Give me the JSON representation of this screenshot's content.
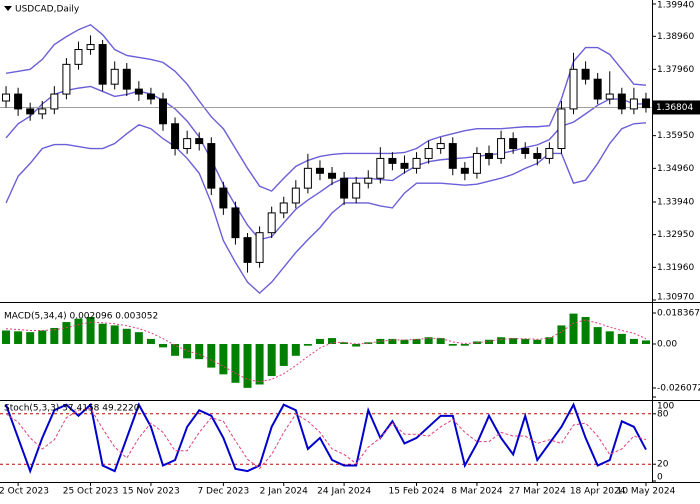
{
  "chart_data": [
    {
      "type": "candlestick",
      "title": "USDCAD,Daily",
      "categories": [
        null,
        "2 Oct 2023",
        null,
        null,
        null,
        null,
        null,
        "25 Oct 2023",
        null,
        null,
        null,
        null,
        "15 Nov 2023",
        null,
        null,
        null,
        null,
        null,
        "7 Dec 2023",
        null,
        null,
        null,
        null,
        "2 Jan 2024",
        null,
        null,
        null,
        null,
        "24 Jan 2024",
        null,
        null,
        null,
        null,
        null,
        "15 Feb 2024",
        null,
        null,
        null,
        null,
        "8 Mar 2024",
        null,
        null,
        null,
        null,
        "27 Mar 2024",
        null,
        null,
        null,
        null,
        "18 Apr 2024",
        null,
        null,
        null,
        "10 May 2024"
      ],
      "open": [
        1.37,
        1.3721,
        1.3676,
        1.3661,
        1.3676,
        1.3721,
        1.3811,
        1.3856,
        1.3871,
        1.3751,
        1.3796,
        1.3736,
        1.3721,
        1.3706,
        1.3631,
        1.3556,
        1.3586,
        1.3571,
        1.3436,
        1.3376,
        1.3286,
        1.3211,
        1.3301,
        1.3361,
        1.3391,
        1.3436,
        1.3496,
        1.3481,
        1.3466,
        1.3406,
        1.3451,
        1.3466,
        1.3526,
        1.3511,
        1.3496,
        1.3526,
        1.3556,
        1.3571,
        1.3496,
        1.3481,
        1.3541,
        1.3526,
        1.3586,
        1.3556,
        1.3541,
        1.3526,
        1.3556,
        1.3676,
        1.3796,
        1.3766,
        1.3706,
        1.3721,
        1.3676,
        1.3706
      ],
      "high": [
        1.3745,
        1.374,
        1.3695,
        1.37,
        1.3745,
        1.383,
        1.388,
        1.3899,
        1.3885,
        1.382,
        1.3815,
        1.376,
        1.374,
        1.3725,
        1.365,
        1.361,
        1.3605,
        1.359,
        1.3455,
        1.3395,
        1.33,
        1.332,
        1.338,
        1.341,
        1.346,
        1.354,
        1.352,
        1.35,
        1.3485,
        1.347,
        1.349,
        1.356,
        1.3545,
        1.3535,
        1.3545,
        1.358,
        1.359,
        1.359,
        1.3515,
        1.356,
        1.3565,
        1.361,
        1.3605,
        1.3575,
        1.356,
        1.3575,
        1.37,
        1.3846,
        1.382,
        1.3785,
        1.379,
        1.374,
        1.374,
        1.3725
      ],
      "low": [
        1.368,
        1.3655,
        1.364,
        1.3645,
        1.366,
        1.3705,
        1.3795,
        1.384,
        1.373,
        1.3735,
        1.3715,
        1.37,
        1.369,
        1.361,
        1.3535,
        1.354,
        1.355,
        1.3415,
        1.3355,
        1.3265,
        1.318,
        1.3195,
        1.3285,
        1.3345,
        1.3375,
        1.342,
        1.346,
        1.3445,
        1.3385,
        1.339,
        1.3435,
        1.345,
        1.349,
        1.348,
        1.348,
        1.351,
        1.354,
        1.3475,
        1.346,
        1.3465,
        1.3505,
        1.351,
        1.354,
        1.3525,
        1.3505,
        1.351,
        1.354,
        1.366,
        1.375,
        1.369,
        1.369,
        1.366,
        1.366,
        1.3665
      ],
      "close": [
        1.3721,
        1.3676,
        1.3661,
        1.3676,
        1.3721,
        1.3811,
        1.3856,
        1.3871,
        1.3751,
        1.3796,
        1.3736,
        1.3721,
        1.3706,
        1.3631,
        1.3556,
        1.3586,
        1.3571,
        1.3436,
        1.3376,
        1.3286,
        1.3211,
        1.3301,
        1.3361,
        1.3391,
        1.3436,
        1.3496,
        1.3481,
        1.3466,
        1.3406,
        1.3451,
        1.3466,
        1.3526,
        1.3511,
        1.3496,
        1.3526,
        1.3556,
        1.3571,
        1.3496,
        1.3481,
        1.3541,
        1.3526,
        1.3586,
        1.3556,
        1.3541,
        1.3526,
        1.3556,
        1.3676,
        1.3796,
        1.3766,
        1.3706,
        1.3721,
        1.3676,
        1.3706,
        1.368
      ],
      "upper_band": [
        1.3784,
        1.379,
        1.3796,
        1.3826,
        1.3871,
        1.3895,
        1.3916,
        1.3931,
        1.3901,
        1.3856,
        1.3838,
        1.3832,
        1.3826,
        1.3817,
        1.379,
        1.3751,
        1.37,
        1.3652,
        1.3616,
        1.3556,
        1.3496,
        1.3442,
        1.3427,
        1.3466,
        1.3502,
        1.352,
        1.3532,
        1.3538,
        1.3541,
        1.3541,
        1.3541,
        1.3541,
        1.3541,
        1.3544,
        1.3556,
        1.358,
        1.3592,
        1.3601,
        1.361,
        1.3616,
        1.3616,
        1.3616,
        1.3619,
        1.3622,
        1.3622,
        1.3625,
        1.3706,
        1.382,
        1.3862,
        1.3862,
        1.3841,
        1.3796,
        1.3751,
        1.3748
      ],
      "middle_band": [
        1.3588,
        1.3631,
        1.3654,
        1.3691,
        1.372,
        1.3732,
        1.3739,
        1.3744,
        1.3729,
        1.3714,
        1.372,
        1.373,
        1.3721,
        1.3702,
        1.3676,
        1.3639,
        1.3591,
        1.3522,
        1.3447,
        1.3384,
        1.3324,
        1.328,
        1.3289,
        1.3331,
        1.3372,
        1.34,
        1.3424,
        1.345,
        1.3466,
        1.3466,
        1.3466,
        1.3462,
        1.3459,
        1.3483,
        1.3504,
        1.3516,
        1.3522,
        1.3525,
        1.3528,
        1.3532,
        1.3537,
        1.3541,
        1.3549,
        1.3559,
        1.3567,
        1.3583,
        1.3624,
        1.3636,
        1.3661,
        1.3687,
        1.3706,
        1.3706,
        1.3691,
        1.3691
      ],
      "lower_band": [
        1.3391,
        1.3472,
        1.3511,
        1.3556,
        1.3568,
        1.3568,
        1.3562,
        1.3556,
        1.3556,
        1.3571,
        1.3601,
        1.3628,
        1.3616,
        1.3586,
        1.3562,
        1.3526,
        1.3481,
        1.3391,
        1.3277,
        1.3211,
        1.3151,
        1.3118,
        1.3151,
        1.3196,
        1.3241,
        1.328,
        1.3316,
        1.3361,
        1.3391,
        1.3391,
        1.3391,
        1.3382,
        1.3376,
        1.3421,
        1.3451,
        1.3451,
        1.3451,
        1.3448,
        1.3445,
        1.3448,
        1.3457,
        1.3466,
        1.3478,
        1.3496,
        1.3511,
        1.3541,
        1.3541,
        1.3451,
        1.346,
        1.3511,
        1.3571,
        1.3616,
        1.3631,
        1.3634
      ],
      "band_color": "#6a5fd8",
      "current_price": {
        "value": 1.36804,
        "label": "1.36804"
      },
      "ylim": [
        1.3091,
        1.4006
      ],
      "yticks": [
        {
          "value": 1.3994,
          "label": "1.39940"
        },
        {
          "value": 1.3896,
          "label": "1.38960"
        },
        {
          "value": 1.3796,
          "label": "1.37960"
        },
        {
          "value": 1.3595,
          "label": "1.35950"
        },
        {
          "value": 1.3496,
          "label": "1.34960"
        },
        {
          "value": 1.3394,
          "label": "1.33940"
        },
        {
          "value": 1.3295,
          "label": "1.32950"
        },
        {
          "value": 1.3196,
          "label": "1.31960"
        },
        {
          "value": 1.3097,
          "label": "1.30970"
        }
      ]
    },
    {
      "type": "bar",
      "title": "MACD(5,34,4) 0.002096 0.003052",
      "values": [
        0.008,
        0.0075,
        0.007,
        0.008,
        0.0095,
        0.013,
        0.015,
        0.016,
        0.012,
        0.011,
        0.009,
        0.007,
        0.003,
        -0.002,
        -0.007,
        -0.0085,
        -0.009,
        -0.014,
        -0.018,
        -0.023,
        -0.026,
        -0.024,
        -0.019,
        -0.013,
        -0.007,
        -0.001,
        0.003,
        0.0035,
        0.001,
        -0.0015,
        0.001,
        0.003,
        0.003,
        0.0025,
        0.003,
        0.004,
        0.0035,
        -0.001,
        -0.001,
        0.0015,
        0.0025,
        0.004,
        0.0035,
        0.003,
        0.0025,
        0.004,
        0.011,
        0.018,
        0.016,
        0.01,
        0.0075,
        0.006,
        0.003,
        0.0021
      ],
      "color": "#008000",
      "signal_values": [
        0.009,
        0.0086,
        0.008,
        0.008,
        0.0084,
        0.0096,
        0.0114,
        0.013,
        0.0126,
        0.012,
        0.0108,
        0.0092,
        0.0066,
        0.0032,
        -0.0008,
        -0.004,
        -0.0062,
        -0.0096,
        -0.0132,
        -0.0174,
        -0.021,
        -0.0224,
        -0.021,
        -0.0176,
        -0.0128,
        -0.0074,
        -0.0024,
        0.0008,
        0.001,
        0.0,
        0.0004,
        0.0016,
        0.0024,
        0.0024,
        0.0027,
        0.0033,
        0.0034,
        0.0012,
        0.0002,
        0.0008,
        0.0016,
        0.0028,
        0.0032,
        0.0031,
        0.0028,
        0.0034,
        0.0072,
        0.0124,
        0.0142,
        0.0124,
        0.01,
        0.008,
        0.0064,
        0.0031
      ],
      "signal_color": "#e0407a",
      "ylim": [
        -0.0332,
        0.0237
      ],
      "yticks": [
        0.018367,
        {
          "value": 0,
          "label": "0.00"
        },
        -0.026072
      ]
    },
    {
      "type": "line",
      "title": "Stoch(5,3,3) 37.4158 49.2220",
      "series": [
        {
          "color": "#0000cd",
          "values": [
            90.8,
            51.3,
            11.8,
            51.3,
            84.2,
            90.8,
            77.6,
            90.8,
            18.4,
            11.8,
            51.3,
            90.8,
            64.5,
            18.4,
            25.0,
            64.5,
            84.2,
            77.6,
            51.3,
            14.5,
            11.8,
            18.4,
            64.5,
            90.8,
            84.2,
            38.2,
            51.3,
            25.0,
            18.4,
            18.4,
            84.2,
            51.3,
            71.1,
            44.7,
            51.3,
            64.5,
            77.6,
            77.6,
            18.4,
            44.7,
            77.6,
            51.3,
            31.6,
            77.6,
            25.0,
            44.7,
            64.5,
            90.8,
            51.3,
            18.4,
            25.0,
            71.1,
            64.5,
            37.4
          ]
        },
        {
          "color": "#e0407a",
          "values": [
            80.0,
            70.0,
            51.3,
            38.1,
            49.1,
            75.4,
            84.2,
            86.4,
            62.3,
            40.3,
            27.2,
            51.3,
            68.9,
            57.9,
            36.0,
            36.0,
            57.9,
            75.4,
            71.0,
            47.8,
            25.9,
            14.9,
            31.6,
            57.9,
            79.8,
            71.1,
            57.9,
            38.2,
            31.6,
            20.6,
            40.3,
            51.3,
            68.9,
            55.7,
            55.7,
            53.5,
            64.5,
            73.2,
            57.9,
            46.9,
            46.9,
            57.9,
            53.5,
            53.5,
            44.7,
            49.1,
            44.7,
            66.7,
            68.9,
            53.5,
            31.6,
            38.2,
            53.5,
            49.2
          ]
        }
      ],
      "levels": [
        20,
        80
      ],
      "level_color": "#cc0000",
      "ylim": [
        0,
        100
      ],
      "yticks": [
        0,
        20,
        80,
        100
      ]
    }
  ]
}
